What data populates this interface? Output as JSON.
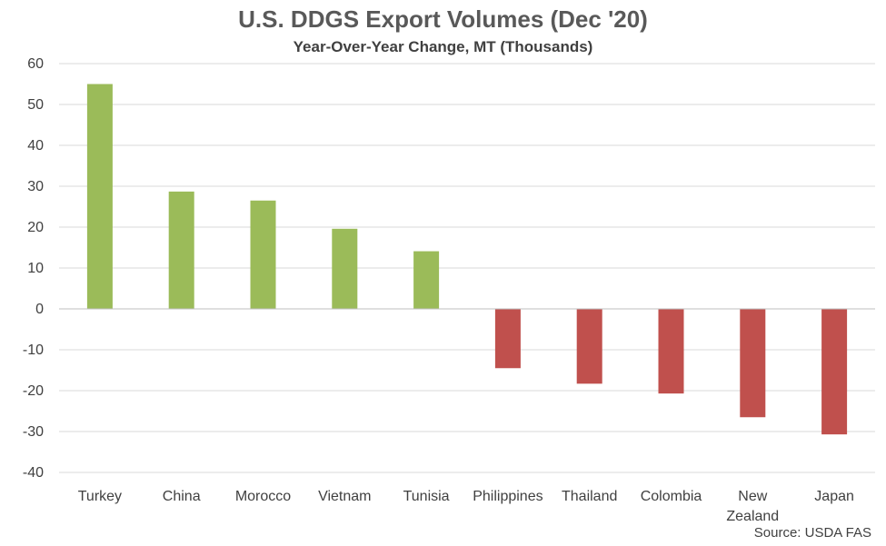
{
  "chart_data": {
    "type": "bar",
    "title": "U.S. DDGS Export Volumes (Dec '20)",
    "subtitle": "Year-Over-Year Change, MT (Thousands)",
    "categories": [
      "Turkey",
      "China",
      "Morocco",
      "Vietnam",
      "Tunisia",
      "Philippines",
      "Thailand",
      "Colombia",
      "New Zealand",
      "Japan"
    ],
    "category_lines": [
      [
        "Turkey"
      ],
      [
        "China"
      ],
      [
        "Morocco"
      ],
      [
        "Vietnam"
      ],
      [
        "Tunisia"
      ],
      [
        "Philippines"
      ],
      [
        "Thailand"
      ],
      [
        "Colombia"
      ],
      [
        "New",
        "Zealand"
      ],
      [
        "Japan"
      ]
    ],
    "values": [
      55,
      28.7,
      26.5,
      19.6,
      14.1,
      -14.5,
      -18.3,
      -20.7,
      -26.5,
      -30.7
    ],
    "ylim": [
      -40,
      60
    ],
    "yticks": [
      60,
      50,
      40,
      30,
      20,
      10,
      0,
      -10,
      -20,
      -30,
      -40
    ],
    "xlabel": "",
    "ylabel": "",
    "grid": true,
    "legend": "none",
    "colors": {
      "positive": "#9bbb59",
      "negative": "#c0504d",
      "grid": "#d9d9d9",
      "axis": "#bfbfbf"
    }
  },
  "source": "Source: USDA FAS"
}
